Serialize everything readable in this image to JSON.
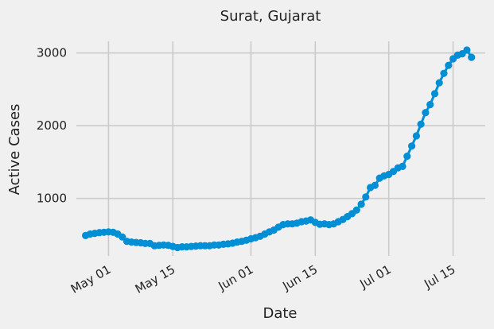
{
  "chart_data": {
    "type": "line",
    "title": "Surat, Gujarat",
    "xlabel": "Date",
    "ylabel": "Active Cases",
    "x_ticks": [
      "2020-05-01",
      "2020-05-15",
      "2020-06-01",
      "2020-06-15",
      "2020-07-01",
      "2020-07-15"
    ],
    "x_tick_labels": [
      "May 01",
      "May 15",
      "Jun 01",
      "Jun 15",
      "Jul 01",
      "Jul 15"
    ],
    "y_ticks": [
      1000,
      2000,
      3000
    ],
    "y_tick_labels": [
      "1000",
      "2000",
      "3000"
    ],
    "xlim": [
      "2020-04-24",
      "2020-07-22"
    ],
    "ylim": [
      210,
      3160
    ],
    "grid": true,
    "color": "#008fd5",
    "series": [
      {
        "x": [
          "2020-04-26",
          "2020-04-27",
          "2020-04-28",
          "2020-04-29",
          "2020-04-30",
          "2020-05-01",
          "2020-05-02",
          "2020-05-03",
          "2020-05-04",
          "2020-05-05",
          "2020-05-06",
          "2020-05-07",
          "2020-05-08",
          "2020-05-09",
          "2020-05-10",
          "2020-05-11",
          "2020-05-12",
          "2020-05-13",
          "2020-05-14",
          "2020-05-15",
          "2020-05-16",
          "2020-05-17",
          "2020-05-18",
          "2020-05-19",
          "2020-05-20",
          "2020-05-21",
          "2020-05-22",
          "2020-05-23",
          "2020-05-24",
          "2020-05-25",
          "2020-05-26",
          "2020-05-27",
          "2020-05-28",
          "2020-05-29",
          "2020-05-30",
          "2020-05-31",
          "2020-06-01",
          "2020-06-02",
          "2020-06-03",
          "2020-06-04",
          "2020-06-05",
          "2020-06-06",
          "2020-06-07",
          "2020-06-08",
          "2020-06-09",
          "2020-06-10",
          "2020-06-11",
          "2020-06-12",
          "2020-06-13",
          "2020-06-14",
          "2020-06-15",
          "2020-06-16",
          "2020-06-17",
          "2020-06-18",
          "2020-06-19",
          "2020-06-20",
          "2020-06-21",
          "2020-06-22",
          "2020-06-23",
          "2020-06-24",
          "2020-06-25",
          "2020-06-26",
          "2020-06-27",
          "2020-06-28",
          "2020-06-29",
          "2020-06-30",
          "2020-07-01",
          "2020-07-02",
          "2020-07-03",
          "2020-07-04",
          "2020-07-05",
          "2020-07-06",
          "2020-07-07",
          "2020-07-08",
          "2020-07-09",
          "2020-07-10",
          "2020-07-11",
          "2020-07-12",
          "2020-07-13",
          "2020-07-14",
          "2020-07-15",
          "2020-07-16",
          "2020-07-17",
          "2020-07-18",
          "2020-07-19"
        ],
        "values": [
          490,
          510,
          520,
          530,
          535,
          540,
          535,
          510,
          470,
          410,
          400,
          395,
          390,
          380,
          380,
          350,
          355,
          360,
          355,
          340,
          325,
          335,
          335,
          340,
          345,
          350,
          350,
          350,
          360,
          360,
          370,
          375,
          385,
          400,
          410,
          425,
          445,
          460,
          480,
          510,
          540,
          565,
          605,
          640,
          650,
          650,
          660,
          680,
          690,
          705,
          670,
          645,
          650,
          640,
          650,
          680,
          710,
          750,
          790,
          840,
          920,
          1020,
          1150,
          1180,
          1280,
          1310,
          1330,
          1370,
          1420,
          1440,
          1580,
          1720,
          1860,
          2020,
          2180,
          2290,
          2440,
          2590,
          2720,
          2830,
          2920,
          2970,
          2990,
          3040,
          2940
        ]
      }
    ]
  }
}
